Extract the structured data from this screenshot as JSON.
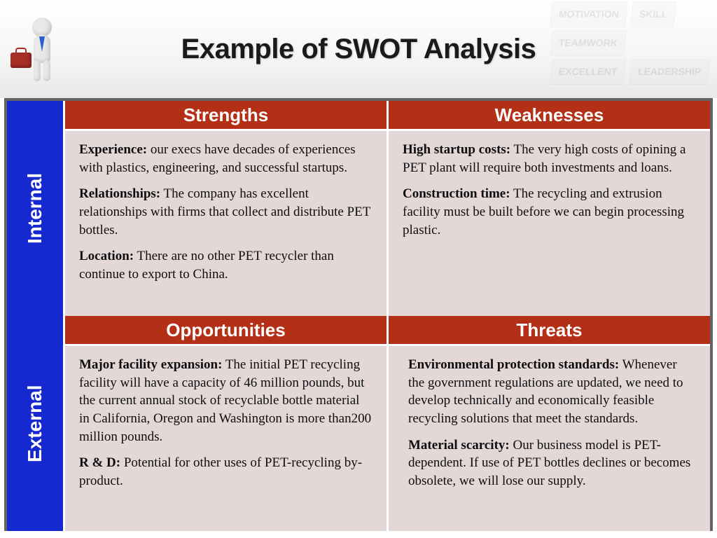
{
  "title": "Example of SWOT Analysis",
  "colors": {
    "side_label_bg": "#1628cf",
    "header_bg": "#b33016",
    "cell_bg": "#e4d7d7",
    "frame": "#636363",
    "briefcase": "#a82f25",
    "tie": "#2a5fcc"
  },
  "bg_signs": [
    "MOTIVATION",
    "SKILL",
    "TEAMWORK",
    "EXCELLENT",
    "LEADERSHIP"
  ],
  "side_labels": {
    "internal": "Internal",
    "external": "External"
  },
  "headers": {
    "strengths": "Strengths",
    "weaknesses": "Weaknesses",
    "opportunities": "Opportunities",
    "threats": "Threats"
  },
  "cells": {
    "strengths": [
      {
        "lead": "Experience:",
        "body": " our execs have decades of experiences with plastics, engineering, and successful startups."
      },
      {
        "lead": "Relationships:",
        "body": " The company has excellent relationships with firms that collect and distribute PET bottles."
      },
      {
        "lead": "Location:",
        "body": " There are no other PET recycler than continue to export to China."
      }
    ],
    "weaknesses": [
      {
        "lead": "High startup costs:",
        "body": " The very high costs of opining a PET plant will require both investments and loans."
      },
      {
        "lead": "Construction time:",
        "body": " The recycling and extrusion facility must be built before we can begin processing plastic."
      }
    ],
    "opportunities": [
      {
        "lead": "Major facility expansion:",
        "body": " The initial PET recycling facility will have a capacity of 46 million pounds, but the current annual stock of recyclable bottle material in California, Oregon and Washington is more than200 million pounds."
      },
      {
        "lead": "R & D:",
        "body": " Potential for other uses of PET-recycling by-product."
      }
    ],
    "threats": [
      {
        "lead": "Environmental protection standards:",
        "body": " Whenever the government regulations are updated, we need to develop technically and economically feasible recycling  solutions that meet the standards."
      },
      {
        "lead": "Material scarcity:",
        "body": " Our business model is PET-dependent. If use of PET bottles declines or becomes obsolete, we will lose our supply."
      }
    ]
  }
}
